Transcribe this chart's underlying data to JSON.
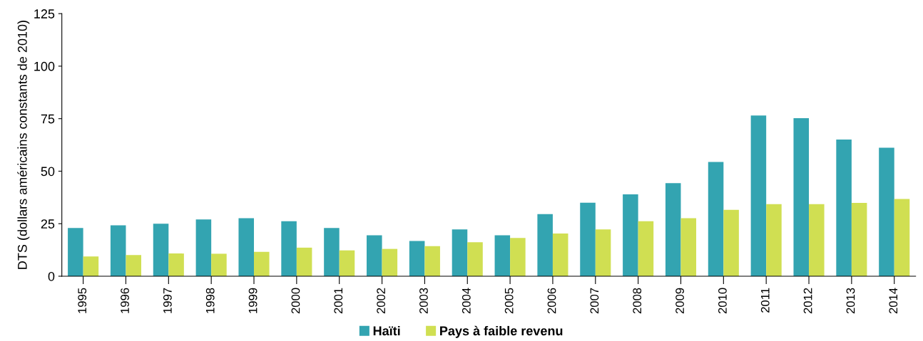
{
  "chart_data": {
    "type": "bar",
    "ylabel": "DTS (dollars américains constants de 2010)",
    "categories": [
      "1995",
      "1996",
      "1997",
      "1998",
      "1999",
      "2000",
      "2001",
      "2002",
      "2003",
      "2004",
      "2005",
      "2006",
      "2007",
      "2008",
      "2009",
      "2010",
      "2011",
      "2012",
      "2013",
      "2014"
    ],
    "series": [
      {
        "name": "Haïti",
        "color": "#33a4b1",
        "values": [
          23,
          24.2,
          25,
          27,
          27.6,
          26.2,
          23,
          19.5,
          16.8,
          22.3,
          19.5,
          29.6,
          35,
          39,
          44.3,
          54.4,
          76.5,
          75.2,
          65.1,
          61.2
        ]
      },
      {
        "name": "Pays à faible revenu",
        "color": "#d0df52",
        "values": [
          9.4,
          10.1,
          10.8,
          10.7,
          11.6,
          13.6,
          12.3,
          13,
          14.3,
          16.2,
          18.2,
          20.3,
          22.3,
          26.2,
          27.6,
          31.6,
          34.3,
          34.3,
          34.9,
          36.8
        ]
      }
    ],
    "ylim": [
      0,
      125
    ],
    "yticks": [
      0,
      25,
      50,
      75,
      100,
      125
    ],
    "grid": false,
    "legend": "bottom"
  }
}
